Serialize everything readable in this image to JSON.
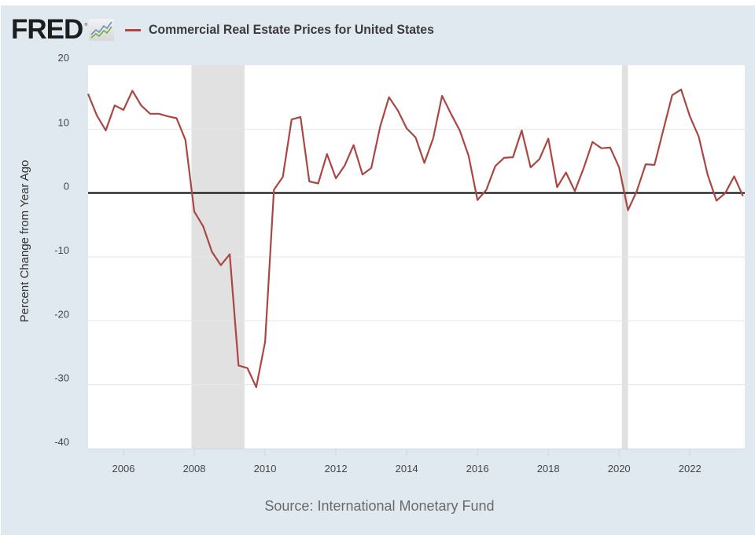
{
  "header": {
    "logo_text": "FRED",
    "logo_tm": "®",
    "legend_label": "Commercial Real Estate Prices for United States"
  },
  "colors": {
    "series": "#aa4643",
    "recession": "#e1e1e1",
    "zero_line": "#000000",
    "grid": "#e6e6e6",
    "panel_bg": "#e1e9f0"
  },
  "source": "Source: International Monetary Fund",
  "chart_data": {
    "type": "line",
    "title": "Commercial Real Estate Prices for United States",
    "xlabel": "",
    "ylabel": "Percent Change from Year Ago",
    "ylim": [
      -40,
      20
    ],
    "xlim": [
      2005.0,
      2023.55
    ],
    "yticks": [
      20,
      10,
      0,
      -10,
      -20,
      -30,
      -40
    ],
    "ytick_labels": [
      "20",
      "10",
      "0",
      "-10",
      "-20",
      "-30",
      "-40"
    ],
    "xticks": [
      2006,
      2008,
      2010,
      2012,
      2014,
      2016,
      2018,
      2020,
      2022
    ],
    "xtick_labels": [
      "2006",
      "2008",
      "2010",
      "2012",
      "2014",
      "2016",
      "2018",
      "2020",
      "2022"
    ],
    "grid": true,
    "zero_line": true,
    "legend_position": "top-left",
    "recessions": [
      {
        "start": 2007.92,
        "end": 2009.42
      },
      {
        "start": 2020.08,
        "end": 2020.25
      }
    ],
    "series": [
      {
        "name": "Commercial Real Estate Prices for United States",
        "frequency": "quarterly",
        "start": 2005.0,
        "step": 0.25,
        "values": [
          15.5,
          12.1,
          9.8,
          13.7,
          13.0,
          16.0,
          13.7,
          12.4,
          12.4,
          12.0,
          11.7,
          8.3,
          -2.9,
          -5.2,
          -9.2,
          -11.3,
          -9.6,
          -27.0,
          -27.4,
          -30.4,
          -23.3,
          0.5,
          2.5,
          11.5,
          11.9,
          1.8,
          1.5,
          6.1,
          2.3,
          4.3,
          7.5,
          2.9,
          3.9,
          10.4,
          15.0,
          12.9,
          10.1,
          8.7,
          4.7,
          8.6,
          15.2,
          12.4,
          9.8,
          5.8,
          -1.1,
          0.5,
          4.2,
          5.5,
          5.6,
          9.8,
          4.0,
          5.3,
          8.5,
          0.9,
          3.2,
          0.3,
          3.9,
          8.0,
          7.0,
          7.1,
          4.0,
          -2.7,
          0.3,
          4.5,
          4.4,
          9.9,
          15.3,
          16.2,
          12.0,
          8.8,
          2.9,
          -1.2,
          0.0,
          2.6,
          -0.5
        ]
      }
    ]
  }
}
